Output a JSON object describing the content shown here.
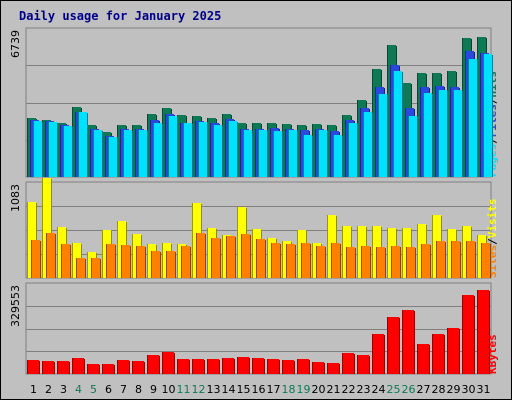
{
  "chart_data": {
    "type": "bar",
    "title": "Daily usage for January 2025",
    "categories": [
      "1",
      "2",
      "3",
      "4",
      "5",
      "6",
      "7",
      "8",
      "9",
      "10",
      "11",
      "12",
      "13",
      "14",
      "15",
      "16",
      "17",
      "18",
      "19",
      "20",
      "21",
      "22",
      "23",
      "24",
      "25",
      "26",
      "27",
      "28",
      "29",
      "30",
      "31"
    ],
    "weekend_days": [
      "4",
      "5",
      "11",
      "12",
      "18",
      "19",
      "25",
      "26"
    ],
    "panels": [
      {
        "key": "top",
        "ymax": 6739,
        "ymax_label": "6739",
        "legend": [
          "Pages",
          "/",
          "Files",
          "/",
          "Hits"
        ],
        "series": [
          {
            "name": "Hits",
            "color": "#0e7a55",
            "values": [
              2650,
              2600,
              2450,
              3150,
              2330,
              2040,
              2330,
              2330,
              2840,
              3120,
              2790,
              2760,
              2680,
              2870,
              2420,
              2450,
              2450,
              2390,
              2330,
              2390,
              2330,
              2810,
              3470,
              4870,
              5970,
              4270,
              4700,
              4710,
              4800,
              6280,
              6350
            ]
          },
          {
            "name": "Files",
            "color": "#2848e0",
            "values": [
              2600,
              2530,
              2370,
              2950,
              2150,
              1870,
              2160,
              2160,
              2560,
              2830,
              2450,
              2520,
              2450,
              2620,
              2180,
              2190,
              2200,
              2190,
              2120,
              2160,
              2100,
              2560,
              3120,
              4080,
              5060,
              3130,
              4060,
              4100,
              4080,
              5720,
              5600
            ]
          },
          {
            "name": "Pages",
            "color": "#00e0ff",
            "values": [
              2550,
              2490,
              2310,
              2930,
              2140,
              1800,
              2110,
              2110,
              2460,
              2760,
              2420,
              2470,
              2330,
              2520,
              2140,
              2140,
              2100,
              2140,
              1890,
              2120,
              1900,
              2430,
              2950,
              3750,
              4800,
              2760,
              3780,
              3940,
              3920,
              5320,
              5560
            ]
          }
        ]
      },
      {
        "key": "middle",
        "ymax": 1083,
        "ymax_label": "1083",
        "legend": [
          "Sites",
          "/",
          "Visits"
        ],
        "series": [
          {
            "name": "Visits",
            "color": "#ffff00",
            "values": [
              860,
              1130,
              570,
              400,
              290,
              540,
              640,
              500,
              380,
              390,
              380,
              850,
              560,
              480,
              800,
              550,
              450,
              420,
              540,
              390,
              710,
              590,
              590,
              590,
              560,
              560,
              610,
              710,
              550,
              590,
              480
            ]
          },
          {
            "name": "Sites",
            "color": "#ff8000",
            "values": [
              430,
              510,
              380,
              220,
              220,
              380,
              370,
              360,
              310,
              300,
              360,
              510,
              450,
              470,
              500,
              440,
              400,
              380,
              400,
              360,
              400,
              350,
              360,
              350,
              360,
              350,
              380,
              420,
              420,
              420,
              390
            ]
          }
        ]
      },
      {
        "key": "bottom",
        "ymax": 329553,
        "ymax_label": "329553",
        "legend": [
          "KBytes"
        ],
        "series": [
          {
            "name": "KBytes",
            "color": "#ff0000",
            "values": [
              50000,
              48000,
              48000,
              58000,
              38000,
              38000,
              50000,
              48000,
              68000,
              80000,
              53000,
              53000,
              53000,
              58000,
              62000,
              58000,
              55000,
              50000,
              53000,
              45000,
              40000,
              75000,
              70000,
              145000,
              205000,
              230000,
              110000,
              145000,
              165000,
              285000,
              305000
            ]
          }
        ]
      }
    ]
  }
}
